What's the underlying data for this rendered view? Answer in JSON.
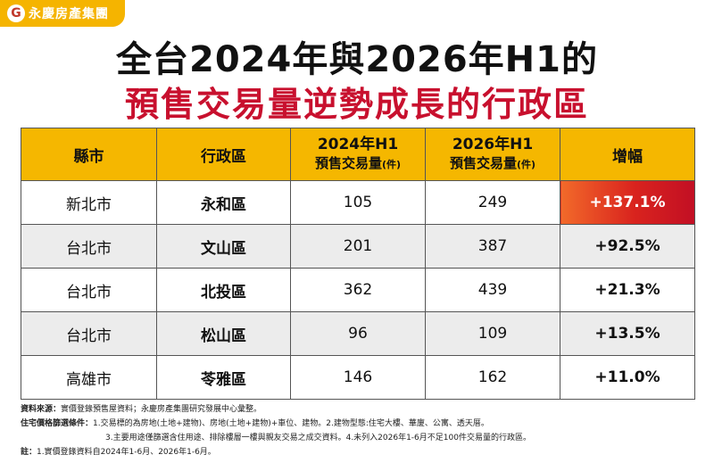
{
  "logo": {
    "text": "永慶房產集團",
    "mark": "G"
  },
  "title": {
    "line1": "全台2024年與2026年H1的",
    "line2": "預售交易量逆勢成長的行政區"
  },
  "table": {
    "headers": {
      "county": "縣市",
      "district": "行政區",
      "col2024_main": "2024年H1",
      "col2024_sub": "預售交易量",
      "col2026_main": "2026年H1",
      "col2026_sub": "預售交易量",
      "unit": "(件)",
      "growth": "增幅"
    },
    "rows": [
      {
        "county": "新北市",
        "district": "永和區",
        "v2024": "105",
        "v2026": "249",
        "growth": "+137.1%"
      },
      {
        "county": "台北市",
        "district": "文山區",
        "v2024": "201",
        "v2026": "387",
        "growth": "+92.5%"
      },
      {
        "county": "台北市",
        "district": "北投區",
        "v2024": "362",
        "v2026": "439",
        "growth": "+21.3%"
      },
      {
        "county": "台北市",
        "district": "松山區",
        "v2024": "96",
        "v2026": "109",
        "growth": "+13.5%"
      },
      {
        "county": "高雄市",
        "district": "苓雅區",
        "v2024": "146",
        "v2026": "162",
        "growth": "+11.0%"
      }
    ]
  },
  "notes": {
    "source_label": "資料來源：",
    "source_text": "實價登錄預售屋資料；永慶房產集團研究發展中心彙整。",
    "criteria_label": "住宅價格篩選條件：",
    "criteria_line1": "1.交易標的為房地(土地+建物)、房地(土地+建物)+車位、建物。2.建物型態:住宅大樓、華廈、公寓、透天厝。",
    "criteria_line2": "3.主要用途僅篩選含住用途、排除樓層一樓與親友交易之成交資料。4.未列入2026年1-6月不足100件交易量的行政區。",
    "note_label": "註：",
    "note_text": "1.實價登錄資料自2024年1-6月、2026年1-6月。"
  }
}
